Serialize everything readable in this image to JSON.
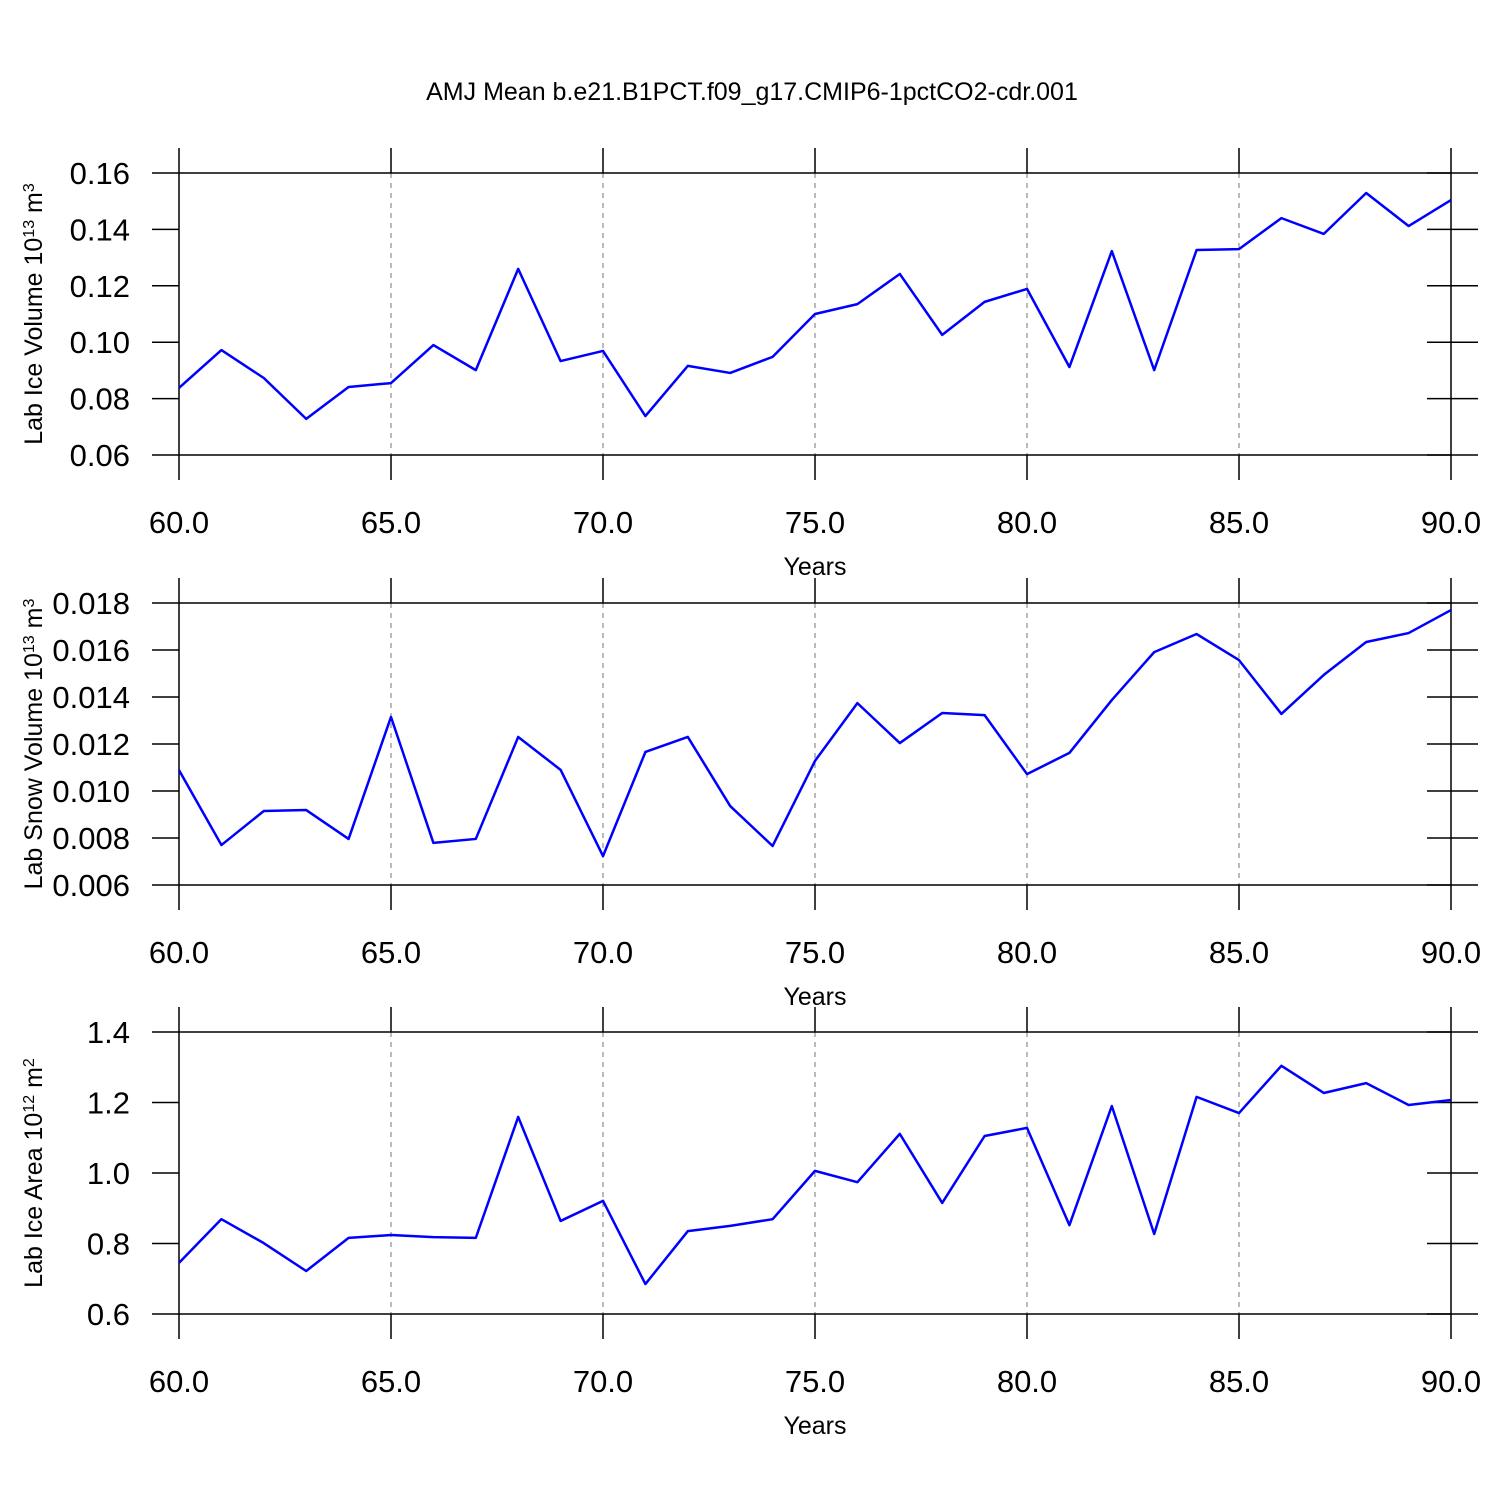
{
  "title": "AMJ Mean b.e21.B1PCT.f09_g17.CMIP6-1pctCO2-cdr.001",
  "chart_data": [
    {
      "type": "line",
      "color": "#0000ff",
      "grid": "x",
      "xlabel": "Years",
      "ylabel": [
        "Lab Ice Volume 10",
        "13",
        " m",
        "3"
      ],
      "x": [
        60,
        61,
        62,
        63,
        64,
        65,
        66,
        67,
        68,
        69,
        70,
        71,
        72,
        73,
        74,
        75,
        76,
        77,
        78,
        79,
        80,
        81,
        82,
        83,
        84,
        85,
        86,
        87,
        88,
        89,
        90
      ],
      "values": [
        0.0838,
        0.0972,
        0.0873,
        0.0728,
        0.0841,
        0.0855,
        0.099,
        0.0901,
        0.126,
        0.0933,
        0.0969,
        0.0738,
        0.0916,
        0.0891,
        0.0948,
        0.11,
        0.1135,
        0.1242,
        0.1026,
        0.1143,
        0.1189,
        0.0912,
        0.1323,
        0.0901,
        0.1327,
        0.133,
        0.144,
        0.1384,
        0.1529,
        0.1412,
        0.1504
      ],
      "xlim": [
        60,
        90
      ],
      "xticks": [
        {
          "value": 60,
          "label": "60.0"
        },
        {
          "value": 65,
          "label": "65.0"
        },
        {
          "value": 70,
          "label": "70.0"
        },
        {
          "value": 75,
          "label": "75.0"
        },
        {
          "value": 80,
          "label": "80.0"
        },
        {
          "value": 85,
          "label": "85.0"
        },
        {
          "value": 90,
          "label": "90.0"
        }
      ],
      "ylim": [
        0.06,
        0.16
      ],
      "yticks": [
        0.06,
        0.08,
        {
          "value": 0.1,
          "label": "0.10"
        },
        0.12,
        0.14,
        0.16
      ]
    },
    {
      "type": "line",
      "color": "#0000ff",
      "grid": "x",
      "xlabel": "Years",
      "ylabel": [
        "Lab Snow Volume 10",
        "13",
        " m",
        "3"
      ],
      "x": [
        60,
        61,
        62,
        63,
        64,
        65,
        66,
        67,
        68,
        69,
        70,
        71,
        72,
        73,
        74,
        75,
        76,
        77,
        78,
        79,
        80,
        81,
        82,
        83,
        84,
        85,
        86,
        87,
        88,
        89,
        90
      ],
      "values": [
        0.01089,
        0.0077,
        0.00915,
        0.00919,
        0.00796,
        0.01315,
        0.00779,
        0.00796,
        0.0123,
        0.0109,
        0.00723,
        0.01166,
        0.0123,
        0.00936,
        0.00766,
        0.01128,
        0.01374,
        0.01204,
        0.01332,
        0.01323,
        0.01072,
        0.01162,
        0.01387,
        0.01591,
        0.01668,
        0.01557,
        0.01328,
        0.01494,
        0.01634,
        0.01672,
        0.0177
      ],
      "xlim": [
        60,
        90
      ],
      "xticks": [
        {
          "value": 60,
          "label": "60.0"
        },
        {
          "value": 65,
          "label": "65.0"
        },
        {
          "value": 70,
          "label": "70.0"
        },
        {
          "value": 75,
          "label": "75.0"
        },
        {
          "value": 80,
          "label": "80.0"
        },
        {
          "value": 85,
          "label": "85.0"
        },
        {
          "value": 90,
          "label": "90.0"
        }
      ],
      "ylim": [
        0.006,
        0.018
      ],
      "yticks": [
        0.006,
        0.008,
        {
          "value": 0.01,
          "label": "0.010"
        },
        0.012,
        0.014,
        0.016,
        0.018
      ]
    },
    {
      "type": "line",
      "color": "#0000ff",
      "grid": "x",
      "xlabel": "Years",
      "ylabel": [
        "Lab Ice Area 10",
        "12",
        " m",
        "2"
      ],
      "x": [
        60,
        61,
        62,
        63,
        64,
        65,
        66,
        67,
        68,
        69,
        70,
        71,
        72,
        73,
        74,
        75,
        76,
        77,
        78,
        79,
        80,
        81,
        82,
        83,
        84,
        85,
        86,
        87,
        88,
        89,
        90
      ],
      "values": [
        0.745,
        0.869,
        0.801,
        0.722,
        0.816,
        0.824,
        0.818,
        0.816,
        1.159,
        0.864,
        0.921,
        0.685,
        0.835,
        0.85,
        0.869,
        1.006,
        0.974,
        1.111,
        0.915,
        1.105,
        1.128,
        0.852,
        1.19,
        0.827,
        1.216,
        1.17,
        1.304,
        1.227,
        1.255,
        1.193,
        1.207
      ],
      "xlim": [
        60,
        90
      ],
      "xticks": [
        {
          "value": 60,
          "label": "60.0"
        },
        {
          "value": 65,
          "label": "65.0"
        },
        {
          "value": 70,
          "label": "70.0"
        },
        {
          "value": 75,
          "label": "75.0"
        },
        {
          "value": 80,
          "label": "80.0"
        },
        {
          "value": 85,
          "label": "85.0"
        },
        {
          "value": 90,
          "label": "90.0"
        }
      ],
      "ylim": [
        0.6,
        1.4
      ],
      "yticks": [
        0.6,
        0.8,
        {
          "value": 1,
          "label": "1.0"
        },
        1.2,
        1.4
      ]
    }
  ]
}
